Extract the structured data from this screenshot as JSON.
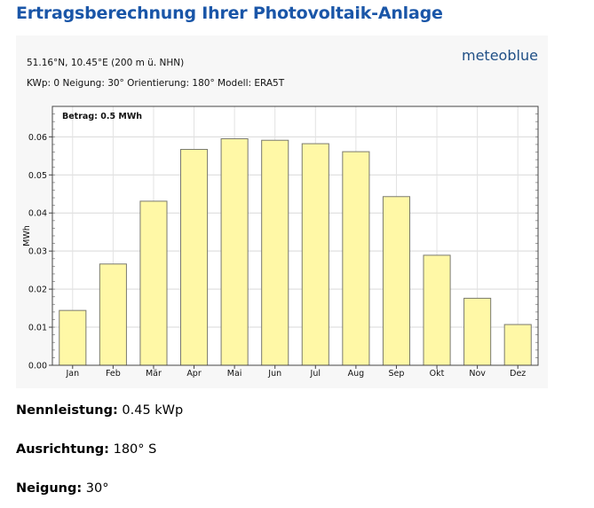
{
  "page": {
    "title": "Ertragsberechnung Ihrer Photovoltaik-Anlage"
  },
  "chart_header": {
    "brand": "meteoblue",
    "location": "51.16°N, 10.45°E (200 m ü. NHN)",
    "params": "KWp: 0  Neigung: 30°  Orientierung: 180°  Modell: ERA5T",
    "summary": "Betrag: 0.5 MWh"
  },
  "chart_data": {
    "type": "bar",
    "title": "",
    "xlabel": "",
    "ylabel": "MWh",
    "categories": [
      "Jan",
      "Feb",
      "Mär",
      "Apr",
      "Mai",
      "Jun",
      "Jul",
      "Aug",
      "Sep",
      "Okt",
      "Nov",
      "Dez"
    ],
    "values": [
      0.0144,
      0.0266,
      0.0431,
      0.0567,
      0.0595,
      0.0591,
      0.0582,
      0.0561,
      0.0443,
      0.0289,
      0.0176,
      0.0107
    ],
    "ylim": [
      0,
      0.068
    ],
    "yticks": [
      "0.00",
      "0.01",
      "0.02",
      "0.03",
      "0.04",
      "0.05",
      "0.06"
    ],
    "grid": true,
    "bar_color": "#fff8a6",
    "bar_border": "#7a7a6e"
  },
  "specs": [
    {
      "label": "Nennleistung:",
      "value": "0.45 kWp"
    },
    {
      "label": "Ausrichtung:",
      "value": "180° S"
    },
    {
      "label": "Neigung:",
      "value": "30°"
    }
  ]
}
